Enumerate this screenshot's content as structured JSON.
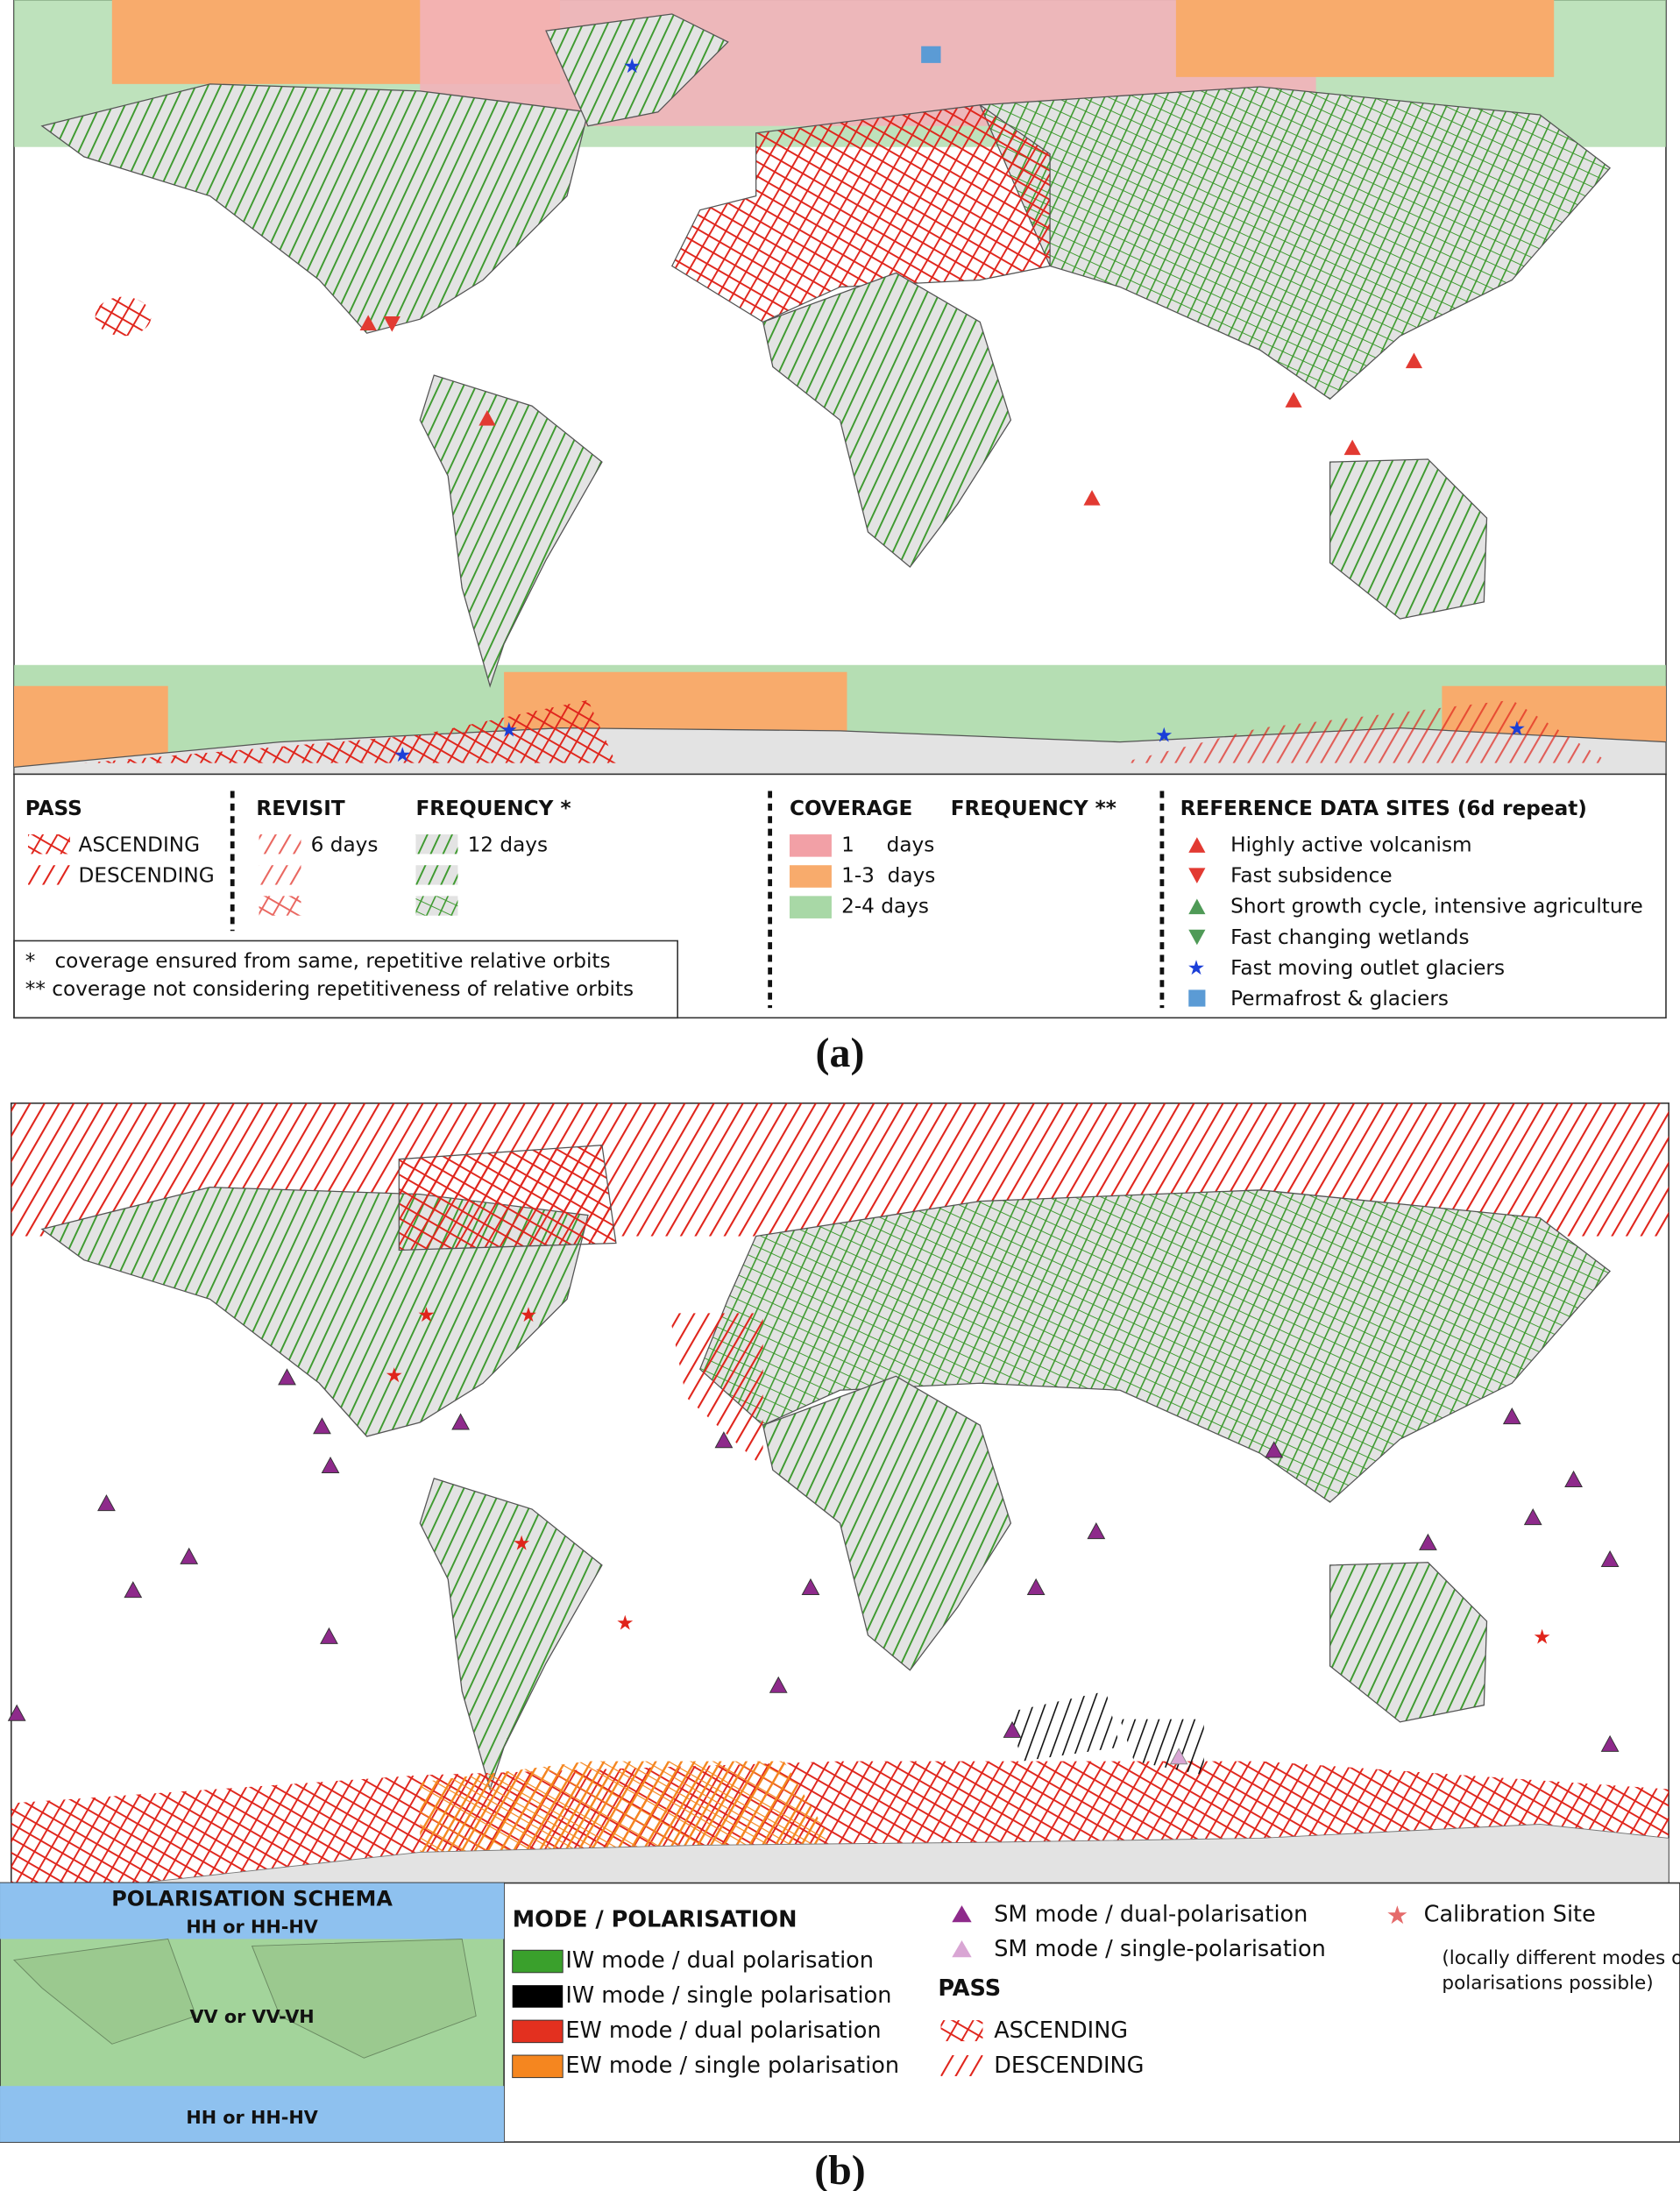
{
  "panel_a": {
    "pass": {
      "title": "PASS",
      "items": [
        "ASCENDING",
        "DESCENDING"
      ]
    },
    "revisit": {
      "title": "REVISIT",
      "item": "6 days"
    },
    "frequency": {
      "title": "FREQUENCY *",
      "item": "12 days"
    },
    "notes": [
      "*   coverage ensured from same, repetitive relative orbits",
      "** coverage not considering repetitiveness of relative orbits"
    ],
    "coverage": {
      "title": "COVERAGE",
      "subtitle": "FREQUENCY **",
      "items": [
        "1     days",
        "1-3  days",
        "2-4 days"
      ]
    },
    "reference_sites": {
      "title": "REFERENCE DATA SITES (6d repeat)",
      "items": [
        "Highly active volcanism",
        "Fast subsidence",
        "Short growth cycle, intensive agriculture",
        "Fast changing wetlands",
        "Fast moving outlet glaciers",
        "Permafrost & glaciers"
      ]
    },
    "caption": "(a)"
  },
  "panel_b": {
    "polarisation_schema": {
      "title": "POLARISATION SCHEMA",
      "labels": [
        "HH or HH-HV",
        "VV or VV-VH",
        "HH or HH-HV"
      ]
    },
    "mode": {
      "title": "MODE / POLARISATION",
      "items": [
        "IW mode / dual polarisation",
        "IW mode / single polarisation",
        "EW mode / dual polarisation",
        "EW mode / single polarisation"
      ]
    },
    "sm_mode": {
      "items": [
        "SM mode / dual-polarisation",
        "SM mode / single-polarisation"
      ]
    },
    "pass": {
      "title": "PASS",
      "items": [
        "ASCENDING",
        "DESCENDING"
      ]
    },
    "calibration": {
      "label": "Calibration Site",
      "note": [
        "(locally different modes or",
        "polarisations possible)"
      ]
    },
    "caption": "(b)"
  }
}
